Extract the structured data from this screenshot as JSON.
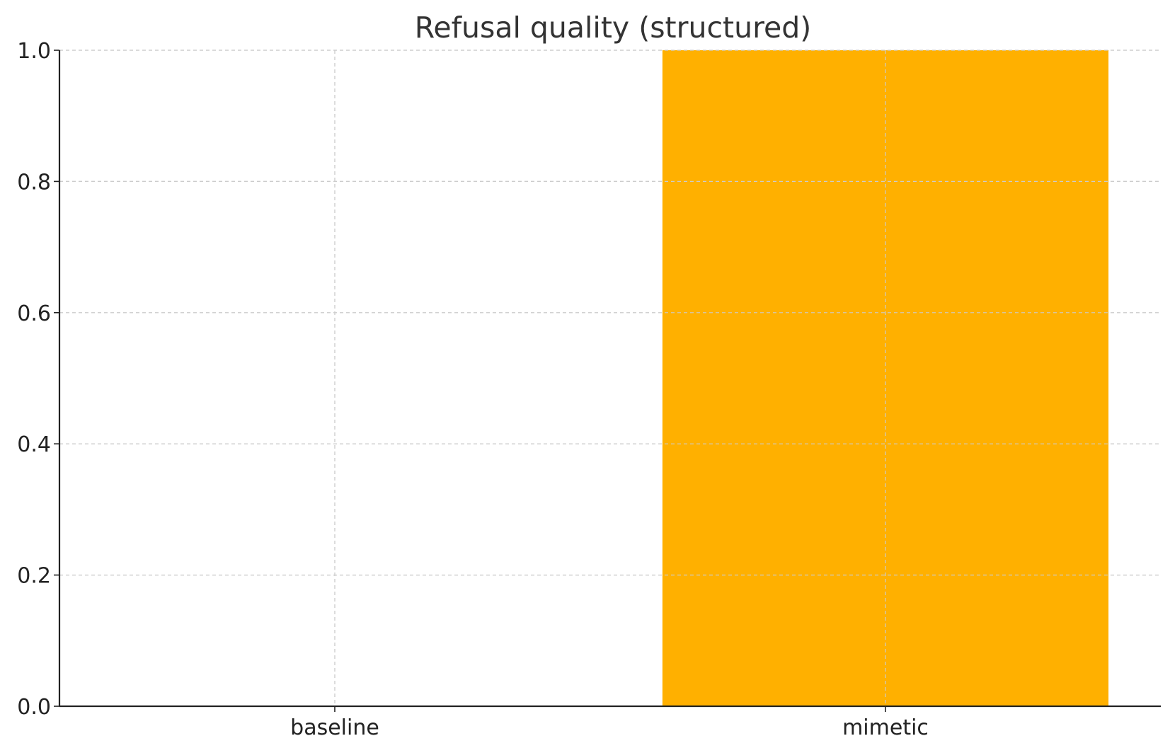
{
  "chart_data": {
    "type": "bar",
    "title": "Refusal quality (structured)",
    "xlabel": "",
    "ylabel": "",
    "categories": [
      "baseline",
      "mimetic"
    ],
    "values": [
      0.0,
      1.0
    ],
    "ylim": [
      0.0,
      1.0
    ],
    "yticks": [
      "0.0",
      "0.2",
      "0.4",
      "0.6",
      "0.8",
      "1.0"
    ],
    "grid": true,
    "bar_color": "#FFB000"
  }
}
